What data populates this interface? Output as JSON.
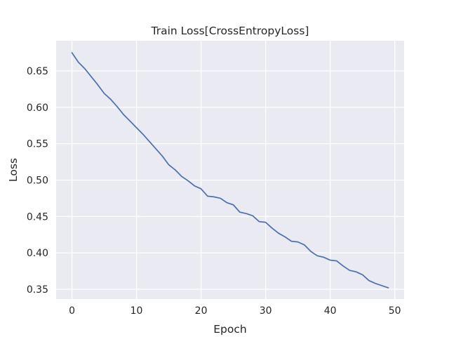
{
  "chart_data": {
    "type": "line",
    "title": "Train Loss[CrossEntropyLoss]",
    "xlabel": "Epoch",
    "ylabel": "Loss",
    "xlim": [
      -2.45,
      51.45
    ],
    "ylim": [
      0.3365,
      0.6915
    ],
    "xticks": [
      0,
      10,
      20,
      30,
      40,
      50
    ],
    "xtick_labels": [
      "0",
      "10",
      "20",
      "30",
      "40",
      "50"
    ],
    "yticks": [
      0.35,
      0.4,
      0.45,
      0.5,
      0.55,
      0.6,
      0.65
    ],
    "ytick_labels": [
      "0.35",
      "0.40",
      "0.45",
      "0.50",
      "0.55",
      "0.60",
      "0.65"
    ],
    "grid": true,
    "colors": {
      "background": "#eaeaf2",
      "grid": "#ffffff",
      "line": "#4c72b0"
    },
    "series": [
      {
        "x": [
          0,
          1,
          2,
          3,
          4,
          5,
          6,
          7,
          8,
          9,
          10,
          11,
          12,
          13,
          14,
          15,
          16,
          17,
          18,
          19,
          20,
          21,
          22,
          23,
          24,
          25,
          26,
          27,
          28,
          29,
          30,
          31,
          32,
          33,
          34,
          35,
          36,
          37,
          38,
          39,
          40,
          41,
          42,
          43,
          44,
          45,
          46,
          47,
          48,
          49
        ],
        "values": [
          0.675,
          0.662,
          0.653,
          0.642,
          0.631,
          0.619,
          0.611,
          0.601,
          0.59,
          0.581,
          0.572,
          0.563,
          0.553,
          0.543,
          0.533,
          0.521,
          0.514,
          0.505,
          0.499,
          0.492,
          0.488,
          0.478,
          0.477,
          0.475,
          0.469,
          0.466,
          0.456,
          0.454,
          0.451,
          0.443,
          0.442,
          0.434,
          0.427,
          0.422,
          0.416,
          0.415,
          0.411,
          0.402,
          0.396,
          0.394,
          0.39,
          0.389,
          0.382,
          0.376,
          0.374,
          0.37,
          0.362,
          0.358,
          0.355,
          0.352
        ]
      }
    ]
  }
}
